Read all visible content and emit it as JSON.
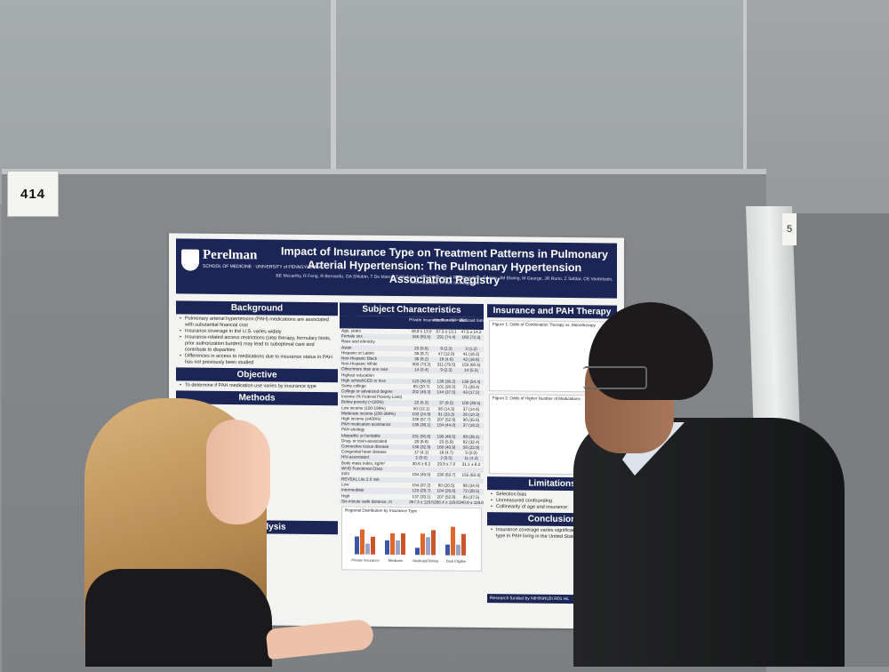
{
  "scene": {
    "booth_number": "414",
    "neighbor_booth_fragment": "5"
  },
  "poster": {
    "logo_name": "Perelman",
    "logo_sub": "SCHOOL OF MEDICINE · UNIVERSITY of PENNSYLVANIA",
    "title": "Impact of Insurance Type on Treatment Patterns in Pulmonary Arterial Hypertension: The Pulmonary Hypertension Association Registry",
    "authors": "BE Mccarthy, R Feng, R Bernardo, OA Shlobin, T De Marco, T Wichman, KW Presberg, A Ravichandran, E Horn, JM Elwing, M George, JR Runo, Z Safdar, CE Ventetuolo, N Al-Naamani, PHAR Investigators",
    "sections": {
      "background": "Background",
      "objective": "Objective",
      "methods": "Methods",
      "data_analysis": "Data Analysis",
      "subject_characteristics": "Subject Characteristics",
      "insurance_therapy": "Insurance and PAH Therapy",
      "limitations": "Limitations",
      "conclusion": "Conclusion"
    },
    "background_bullets": [
      "Pulmonary arterial hypertension (PAH) medications are associated with substantial financial cost",
      "Insurance coverage in the U.S. varies widely",
      "Insurance-related access restrictions (step therapy, formulary limits, prior authorization burden) may lead to suboptimal care and contribute to disparities",
      "Differences in access to medications due to insurance status in PAH has not previously been studied"
    ],
    "objective_text": "To determine if PAH medication use varies by insurance type",
    "table_header": [
      "",
      "Private Insurance N = 414",
      "Medicare N = 391",
      "Medicaid Similar N = 253"
    ],
    "table_rows": [
      [
        "Age, years",
        "49.9 ± 13.0",
        "67.3 ± 13.1",
        "47.5 ± 14.2"
      ],
      [
        "Female sex",
        "346 (83.6)",
        "291 (74.4)",
        "183 (72.3)"
      ],
      [
        "Race and ethnicity",
        "",
        "",
        ""
      ],
      [
        "Asian",
        "23 (5.6)",
        "9 (2.3)",
        "3 (1.2)"
      ],
      [
        "Hispanic or Latino",
        "36 (8.7)",
        "47 (12.0)",
        "41 (16.2)"
      ],
      [
        "Non-Hispanic Black",
        "38 (9.2)",
        "18 (4.6)",
        "42 (16.6)"
      ],
      [
        "Non-Hispanic White",
        "303 (73.2)",
        "311 (79.5)",
        "153 (60.5)"
      ],
      [
        "Other/more than one race",
        "14 (3.4)",
        "9 (2.3)",
        "14 (5.5)"
      ],
      [
        "Highest education",
        "",
        "",
        ""
      ],
      [
        "High school/GED or less",
        "123 (30.0)",
        "138 (36.2)",
        "136 (54.4)"
      ],
      [
        "Some college",
        "85 (20.7)",
        "101 (26.5)",
        "71 (28.4)"
      ],
      [
        "College or advanced degree",
        "202 (49.3)",
        "144 (37.5)",
        "43 (17.2)"
      ],
      [
        "Income (% Federal Poverty Limit)",
        "",
        "",
        ""
      ],
      [
        "Below poverty (<100%)",
        "22 (5.3)",
        "37 (9.5)",
        "100 (39.5)"
      ],
      [
        "Low income (100-199%)",
        "50 (12.1)",
        "56 (14.3)",
        "37 (14.6)"
      ],
      [
        "Moderate income (200-399%)",
        "103 (24.9)",
        "91 (23.3)",
        "26 (10.3)"
      ],
      [
        "High income (≥400%)",
        "239 (57.7)",
        "207 (52.9)",
        "90 (35.6)"
      ],
      [
        "PAH medication assistance",
        "136 (36.1)",
        "154 (44.0)",
        "37 (18.2)"
      ],
      [
        "PAH etiology",
        "",
        "",
        ""
      ],
      [
        "Idiopathic or heritable",
        "231 (55.8)",
        "190 (48.6)",
        "99 (39.1)"
      ],
      [
        "Drug- or toxin-associated",
        "28 (6.8)",
        "23 (5.9)",
        "82 (32.4)"
      ],
      [
        "Connective tissue disease",
        "136 (32.9)",
        "160 (40.9)",
        "58 (22.9)"
      ],
      [
        "Congenital heart disease",
        "17 (4.1)",
        "18 (4.7)",
        "5 (2.0)"
      ],
      [
        "HIV-associated",
        "2 (0.5)",
        "2 (0.5)",
        "11 (4.3)"
      ],
      [
        "Body mass index, kg/m²",
        "30.6 ± 8.2",
        "29.9 ± 7.0",
        "31.1 ± 8.2"
      ],
      [
        "WHO Functional Class",
        "",
        "",
        ""
      ],
      [
        "III/IV",
        "194 (49.0)",
        "230 (63.7)",
        "155 (63.3)"
      ],
      [
        "REVEAL Lite 2.0 risk",
        "",
        "",
        ""
      ],
      [
        "Low",
        "154 (37.2)",
        "80 (20.5)",
        "86 (34.0)"
      ],
      [
        "Intermediate",
        "123 (29.7)",
        "104 (26.6)",
        "72 (28.5)"
      ],
      [
        "High",
        "137 (33.1)",
        "207 (52.9)",
        "95 (37.5)"
      ],
      [
        "Six-minute walk distance, m",
        "357.3 ± 119.5",
        "266.4 ± 119.8",
        "340.8 ± 119.0"
      ]
    ],
    "figure1_title": "Figure 1: Odds of Combination Therapy vs. Monotherapy",
    "figure2_title": "Figure 2: Odds of Higher Number of Medications",
    "regional_chart_title": "Regional Distribution by Insurance Type",
    "regional_chart_categories": [
      "Private Insurance",
      "Medicare",
      "Medicaid/Similar",
      "Dual Eligible"
    ],
    "limitations_bullets": [
      "Selection bias",
      "Unmeasured confounding",
      "Collinearity of age and insurance"
    ],
    "conclusion_text": "Insurance coverage varies significantly by insurance type in PAH living in the United States",
    "funding": "Research funded by NIH/NHLBI R01 HL"
  },
  "chart_data": {
    "type": "bar",
    "title": "Regional Distribution by Insurance Type",
    "categories": [
      "Private Insurance",
      "Medicare",
      "Medicaid/Similar",
      "Dual Eligible"
    ],
    "series": [
      {
        "values": [
          25,
          20,
          10,
          15
        ]
      },
      {
        "values": [
          35,
          30,
          30,
          40
        ]
      },
      {
        "values": [
          15,
          20,
          25,
          15
        ]
      },
      {
        "values": [
          25,
          30,
          35,
          30
        ]
      }
    ],
    "colors": [
      "#3c55a5",
      "#e0672b",
      "#9aa3c4",
      "#c9552a"
    ]
  }
}
